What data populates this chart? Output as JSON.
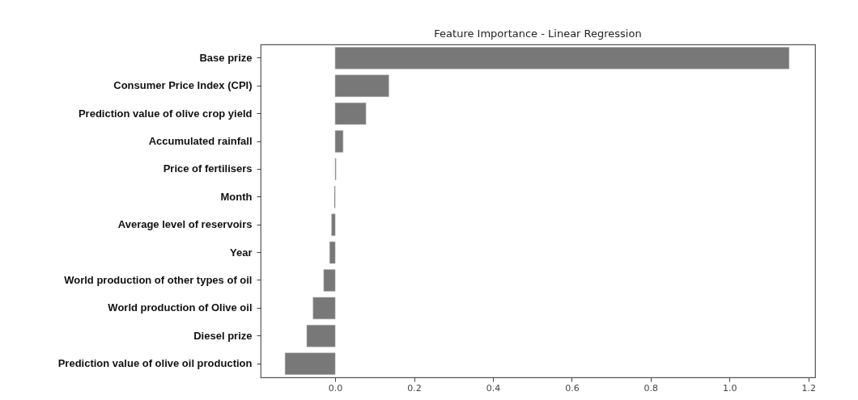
{
  "chart_data": {
    "type": "bar",
    "orientation": "horizontal",
    "title": "Feature Importance - Linear Regression",
    "categories": [
      "Base prize",
      "Consumer Price Index (CPI)",
      "Prediction value of olive crop yield",
      "Accumulated rainfall",
      "Price of fertilisers",
      "Month",
      "Average level of reservoirs",
      "Year",
      "World production of other types of oil",
      "World production of Olive oil",
      "Diesel prize",
      "Prediction value of olive oil production"
    ],
    "values": [
      1.151,
      0.136,
      0.078,
      0.02,
      0.002,
      -0.002,
      -0.009,
      -0.014,
      -0.029,
      -0.056,
      -0.072,
      -0.127
    ],
    "color": "#787878",
    "xlim": [
      -0.189,
      1.217
    ],
    "xticks": [
      {
        "value": 0,
        "label": "0.0"
      },
      0.2,
      0.4,
      0.6,
      0.8,
      {
        "value": 1,
        "label": "1.0"
      },
      1.2
    ],
    "grid": false
  }
}
